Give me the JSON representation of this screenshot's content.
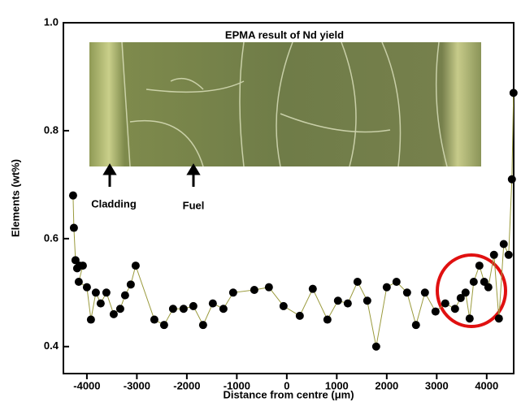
{
  "chart_data": {
    "type": "scatter",
    "x_label": "Distance from centre (μm)",
    "y_label": "Elements  (wt%)",
    "annotations": [
      "EPMA result of Nd yield",
      "Cladding",
      "Fuel"
    ],
    "x": [
      -4276,
      -4260,
      -4228,
      -4195,
      -4146,
      -4081,
      -4163,
      -4000,
      -3919,
      -3821,
      -3724,
      -3610,
      -3463,
      -3333,
      -3236,
      -3122,
      -3024,
      -2650,
      -2455,
      -2276,
      -2065,
      -1870,
      -1675,
      -1480,
      -1268,
      -1073,
      -650,
      -358,
      -65,
      260,
      520,
      813,
      1024,
      1220,
      1415,
      1610,
      1789,
      2000,
      2195,
      2407,
      2585,
      2764,
      2976,
      3171,
      3366,
      3480,
      3577,
      3659,
      3740,
      3854,
      3951,
      4033,
      4146,
      4244,
      4341,
      4439,
      4504,
      4537
    ],
    "values": [
      0.68,
      0.62,
      0.56,
      0.545,
      0.55,
      0.55,
      0.52,
      0.51,
      0.45,
      0.5,
      0.48,
      0.5,
      0.46,
      0.47,
      0.495,
      0.515,
      0.55,
      0.45,
      0.44,
      0.47,
      0.47,
      0.475,
      0.44,
      0.48,
      0.47,
      0.5,
      0.505,
      0.51,
      0.475,
      0.457,
      0.507,
      0.45,
      0.485,
      0.48,
      0.52,
      0.485,
      0.4,
      0.51,
      0.52,
      0.5,
      0.44,
      0.5,
      0.465,
      0.48,
      0.47,
      0.49,
      0.5,
      0.452,
      0.52,
      0.55,
      0.52,
      0.51,
      0.57,
      0.452,
      0.59,
      0.57,
      0.71,
      0.87
    ],
    "color": "#000000",
    "line_color": "#9a9a3c",
    "xlim": [
      -4470,
      4540
    ],
    "ylim": [
      0.35,
      1.0
    ],
    "xticks": [
      -4000,
      -3000,
      -2000,
      -1000,
      0,
      1000,
      2000,
      3000,
      4000
    ],
    "yticks": [
      0.4,
      0.6,
      0.8,
      {
        "value": 1,
        "label": "1.0"
      }
    ]
  }
}
